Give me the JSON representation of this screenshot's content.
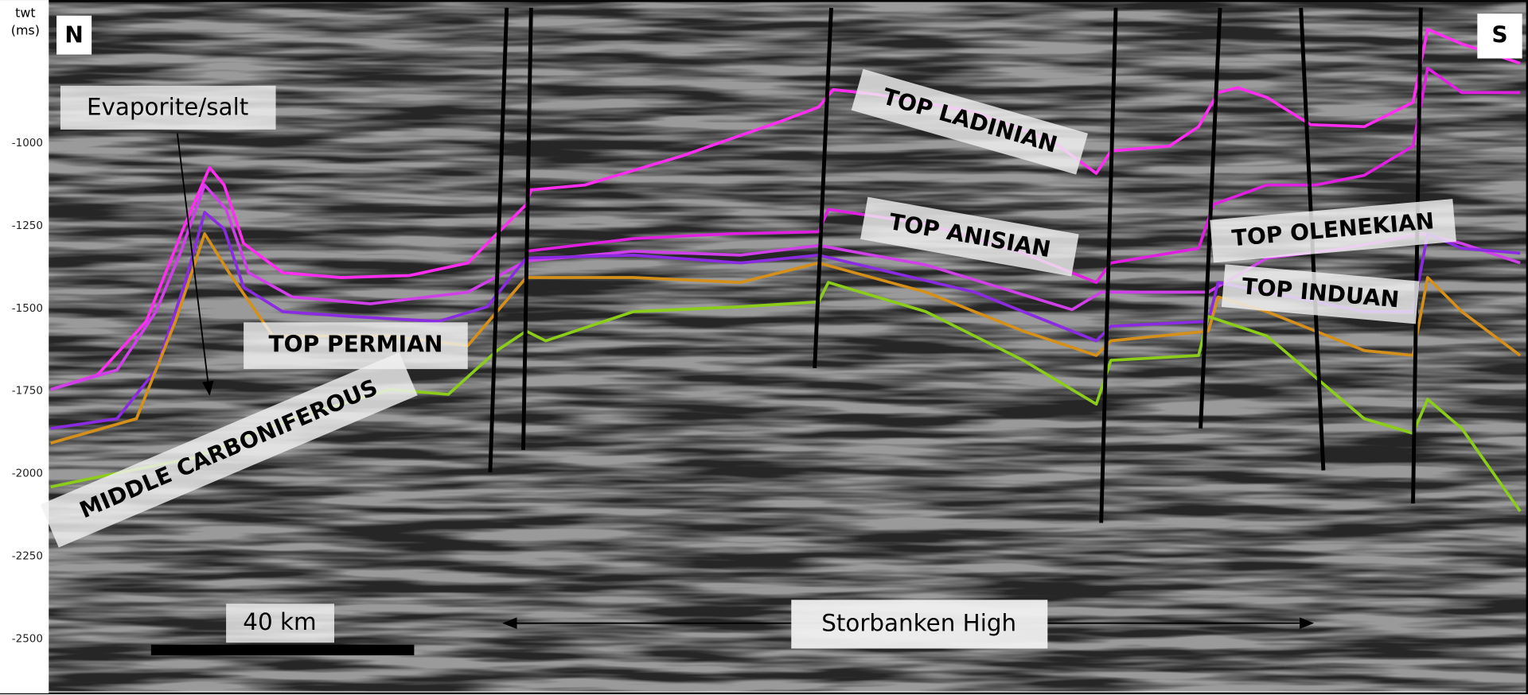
{
  "axis": {
    "label": [
      "twt",
      "(ms)"
    ],
    "ticks": [
      -1000,
      -1250,
      -1500,
      -1750,
      -2000,
      -2250,
      -2500
    ]
  },
  "directions": {
    "north": "N",
    "south": "S"
  },
  "annotations": {
    "evaporite": "Evaporite/salt",
    "scale_bar": "40 km",
    "high": "Storbanken High"
  },
  "horizons": {
    "ladinian": "TOP LADINIAN",
    "anisian": "TOP ANISIAN",
    "olenekian": "TOP OLENEKIAN",
    "induan": "TOP INDUAN",
    "permian": "TOP PERMIAN",
    "carboniferous": "MIDDLE CARBONIFEROUS"
  }
}
